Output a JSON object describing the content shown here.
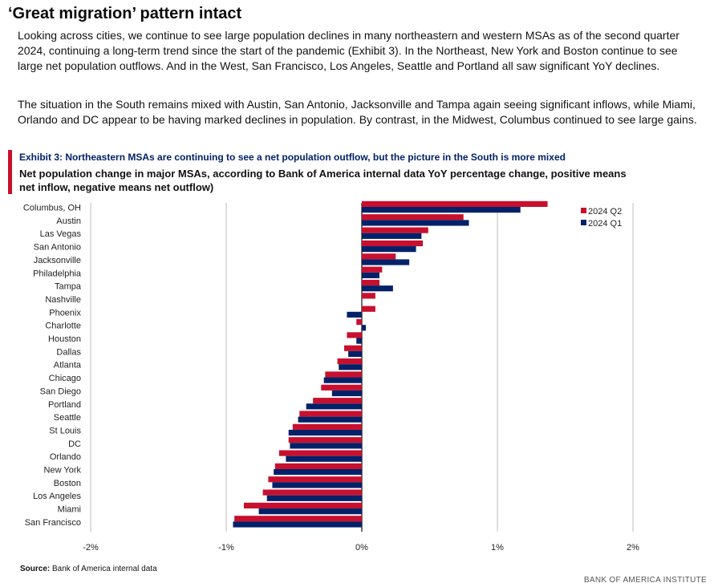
{
  "title": "‘Great migration’ pattern intact",
  "paragraphs": [
    "Looking across cities, we continue to see large population declines in many northeastern and western MSAs as of the second quarter 2024, continuing a long-term trend since the start of the pandemic (Exhibit 3). In the Northeast, New York and Boston continue to see large net population outflows. And in the West, San Francisco, Los Angeles, Seattle and Portland all saw significant YoY declines.",
    "The situation in the South remains mixed with Austin, San Antonio, Jacksonville and Tampa again seeing significant inflows, while Miami, Orlando and DC appear to be having marked declines in population. By contrast, in the Midwest, Columbus continued to see large gains."
  ],
  "exhibit": {
    "title": "Exhibit 3: Northeastern MSAs are continuing to see a net population outflow, but the picture in the South is more mixed",
    "subtitle": "Net population change in major MSAs, according to Bank of America internal data YoY percentage change, positive means net inflow, negative means net outflow)"
  },
  "chart_data": {
    "type": "bar",
    "orientation": "horizontal",
    "categories": [
      "Columbus, OH",
      "Austin",
      "Las Vegas",
      "San Antonio",
      "Jacksonville",
      "Philadelphia",
      "Tampa",
      "Nashville",
      "Phoenix",
      "Charlotte",
      "Houston",
      "Dallas",
      "Atlanta",
      "Chicago",
      "San Diego",
      "Portland",
      "Seattle",
      "St Louis",
      "DC",
      "Orlando",
      "New York",
      "Boston",
      "Los Angeles",
      "Miami",
      "San Francisco"
    ],
    "series": [
      {
        "name": "2024 Q2",
        "color": "#c8102e",
        "values": [
          1.37,
          0.75,
          0.49,
          0.45,
          0.25,
          0.15,
          0.13,
          0.1,
          0.1,
          -0.04,
          -0.11,
          -0.13,
          -0.18,
          -0.27,
          -0.3,
          -0.36,
          -0.46,
          -0.51,
          -0.54,
          -0.61,
          -0.64,
          -0.69,
          -0.73,
          -0.87,
          -0.94
        ]
      },
      {
        "name": "2024 Q1",
        "color": "#012169",
        "values": [
          1.17,
          0.79,
          0.44,
          0.4,
          0.35,
          0.13,
          0.23,
          0.0,
          -0.11,
          0.03,
          -0.04,
          -0.1,
          -0.17,
          -0.28,
          -0.22,
          -0.41,
          -0.47,
          -0.54,
          -0.53,
          -0.56,
          -0.65,
          -0.66,
          -0.7,
          -0.76,
          -0.95
        ]
      }
    ],
    "x_ticks": [
      "-2%",
      "-1%",
      "0%",
      "1%",
      "2%"
    ],
    "xlim": [
      -2,
      2
    ],
    "grid": true,
    "legend": "top-right"
  },
  "source_label": "Source:",
  "source": "Bank of America internal data",
  "brand": "BANK OF AMERICA INSTITUTE"
}
